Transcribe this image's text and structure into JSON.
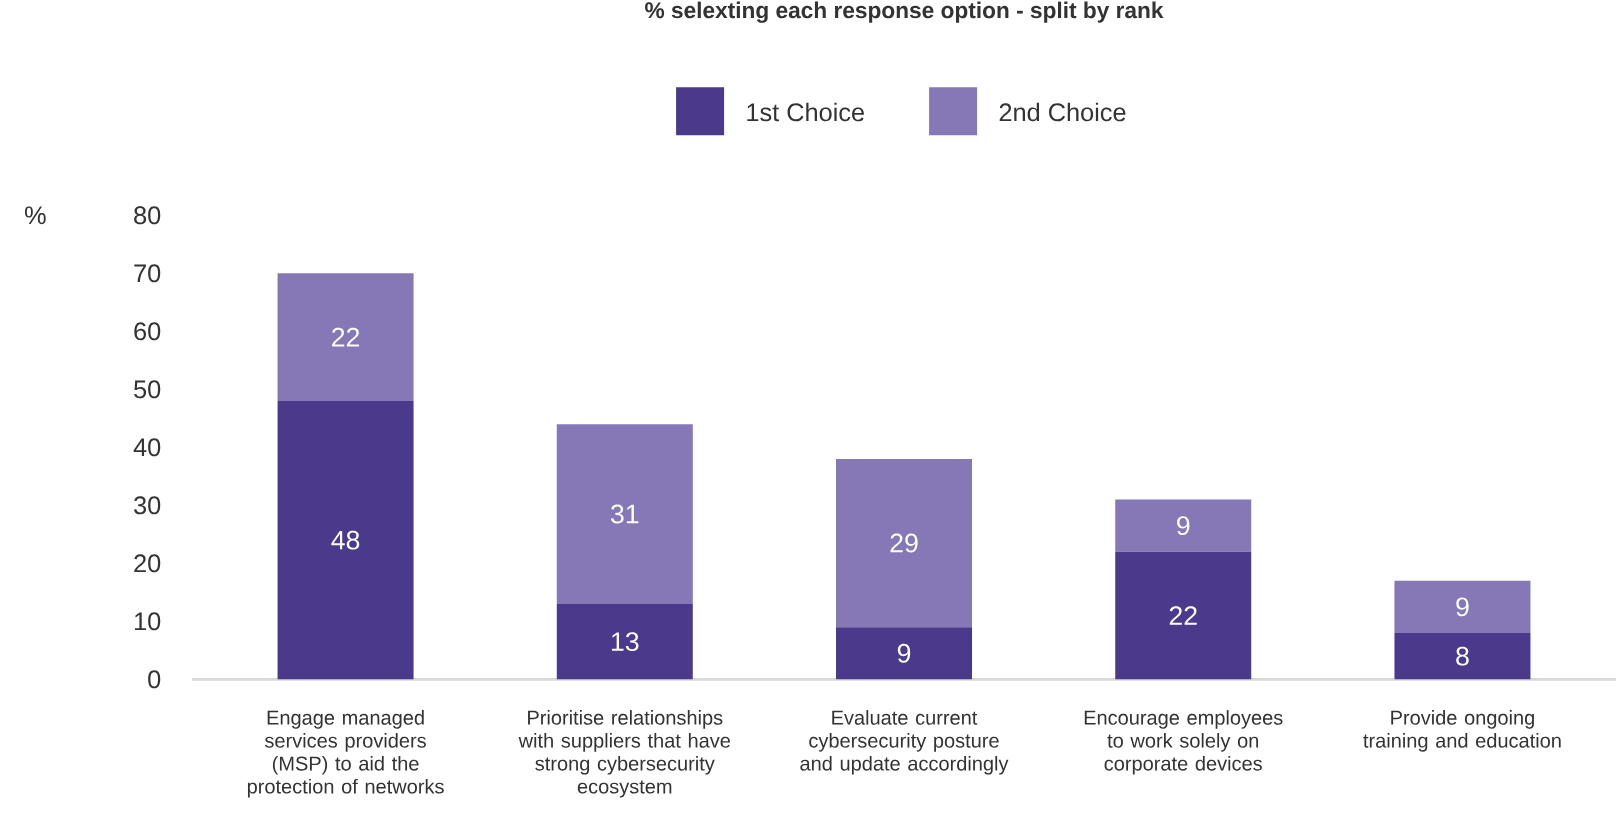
{
  "chart_data": {
    "type": "bar",
    "stacked": true,
    "title": "% selexting each response option - split by rank",
    "ylabel": "%",
    "categories": [
      "Engage managed services providers (MSP) to aid the protection of networks",
      "Prioritise relationships with suppliers that have strong cybersecurity ecosystem",
      "Evaluate current cybersecurity posture and update accordingly",
      "Encourage employees to work solely on corporate devices",
      "Provide ongoing training and education"
    ],
    "series": [
      {
        "name": "1st Choice",
        "color": "#4b3a8c",
        "values": [
          48,
          13,
          9,
          22,
          8
        ]
      },
      {
        "name": "2nd Choice",
        "color": "#8677b7",
        "values": [
          22,
          31,
          29,
          9,
          9
        ]
      }
    ],
    "ylim": [
      0,
      80
    ],
    "yticks": [
      0,
      10,
      20,
      30,
      40,
      50,
      60,
      70,
      80
    ],
    "data_labels": true,
    "legend": "top"
  }
}
